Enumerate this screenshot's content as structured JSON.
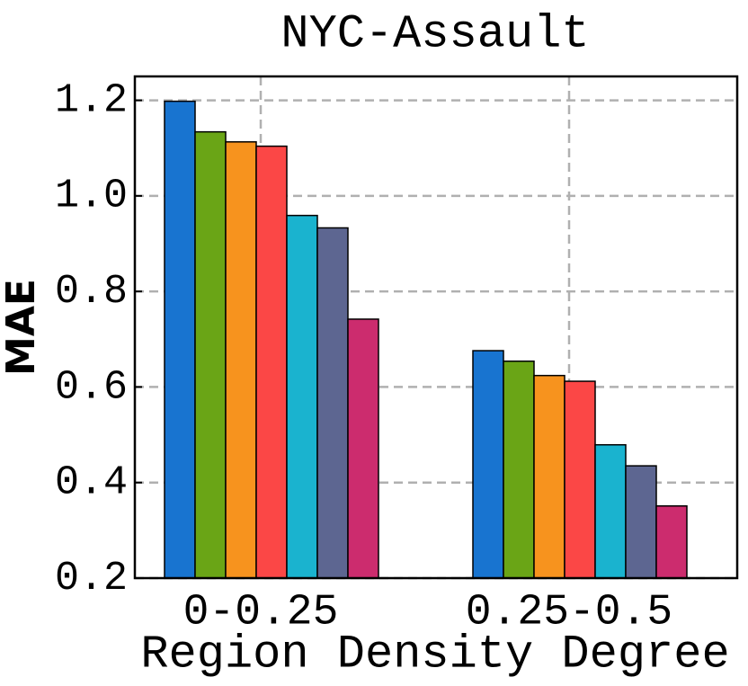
{
  "chart_data": {
    "type": "bar",
    "title": "NYC-Assault",
    "xlabel": "Region Density Degree",
    "ylabel": "MAE",
    "categories": [
      "0-0.25",
      "0.25-0.5"
    ],
    "series": [
      {
        "color": "#1874d0",
        "values": [
          1.198,
          0.676
        ]
      },
      {
        "color": "#6aa516",
        "values": [
          1.134,
          0.654
        ]
      },
      {
        "color": "#f7931e",
        "values": [
          1.113,
          0.624
        ]
      },
      {
        "color": "#fb4746",
        "values": [
          1.104,
          0.612
        ]
      },
      {
        "color": "#1ab3cf",
        "values": [
          0.959,
          0.479
        ]
      },
      {
        "color": "#5d6691",
        "values": [
          0.933,
          0.435
        ]
      },
      {
        "color": "#cc2c6e",
        "values": [
          0.742,
          0.351
        ]
      }
    ],
    "ylim": [
      0.2,
      1.25
    ],
    "yticks": [
      0.2,
      0.4,
      0.6,
      0.8,
      {
        "value": 1,
        "label": "1.0"
      },
      1.2
    ],
    "grid": true
  }
}
